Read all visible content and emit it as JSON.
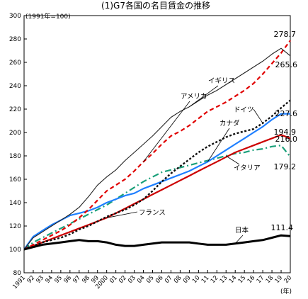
{
  "chart_data": {
    "type": "line",
    "title": "(1)G7各国の名目賃金の推移",
    "unit_label": "(1991年=100)",
    "x_unit": "(年)",
    "categories": [
      "1991",
      "92",
      "93",
      "94",
      "95",
      "96",
      "97",
      "98",
      "99",
      "2000",
      "01",
      "02",
      "03",
      "04",
      "05",
      "06",
      "07",
      "08",
      "09",
      "10",
      "11",
      "12",
      "13",
      "14",
      "15",
      "16",
      "17",
      "18",
      "19",
      "20"
    ],
    "ylim": [
      80,
      300
    ],
    "yticks": [
      80,
      100,
      120,
      140,
      160,
      180,
      200,
      220,
      240,
      260,
      280,
      300
    ],
    "grid": false,
    "series": [
      {
        "name": "イギリス",
        "color": "#222222",
        "style": "solid-thin",
        "values": [
          100,
          110,
          115,
          120,
          125,
          130,
          136,
          145,
          155,
          162,
          168,
          176,
          183,
          190,
          197,
          205,
          213,
          218,
          222,
          227,
          232,
          236,
          241,
          246,
          251,
          256,
          261,
          267,
          272,
          265.6
        ]
      },
      {
        "name": "アメリカ",
        "color": "#e00000",
        "style": "dash",
        "values": [
          100,
          104,
          108,
          112,
          116,
          121,
          127,
          134,
          142,
          150,
          155,
          160,
          167,
          175,
          182,
          190,
          197,
          201,
          206,
          212,
          218,
          222,
          226,
          231,
          236,
          242,
          250,
          259,
          268,
          278.7
        ]
      },
      {
        "name": "ドイツ",
        "color": "#111111",
        "style": "dot",
        "values": [
          100,
          103,
          106,
          108,
          110,
          113,
          117,
          120,
          124,
          128,
          131,
          134,
          138,
          143,
          150,
          158,
          165,
          171,
          177,
          183,
          188,
          192,
          196,
          199,
          201,
          203,
          208,
          214,
          221,
          227.6
        ]
      },
      {
        "name": "カナダ",
        "color": "#1e7fff",
        "style": "solid",
        "values": [
          100,
          111,
          116,
          121,
          125,
          129,
          131,
          133,
          136,
          140,
          143,
          146,
          148,
          152,
          155,
          158,
          161,
          164,
          167,
          171,
          175,
          180,
          185,
          190,
          195,
          200,
          205,
          211,
          216,
          216.0
        ]
      },
      {
        "name": "イタリア",
        "color": "#1aa07a",
        "style": "dashdot",
        "values": [
          100,
          106,
          110,
          114,
          118,
          122,
          126,
          130,
          134,
          138,
          143,
          148,
          153,
          158,
          162,
          166,
          168,
          170,
          172,
          174,
          176,
          178,
          180,
          182,
          183,
          185,
          186,
          188,
          189,
          179.2
        ]
      },
      {
        "name": "フランス",
        "color": "#cc0000",
        "style": "solid",
        "values": [
          100,
          103,
          106,
          109,
          112,
          115,
          118,
          121,
          124,
          127,
          131,
          135,
          139,
          143,
          147,
          151,
          155,
          159,
          163,
          167,
          171,
          175,
          179,
          183,
          186,
          189,
          192,
          195,
          198,
          194.9
        ]
      },
      {
        "name": "日本",
        "color": "#000000",
        "style": "solid-bold",
        "values": [
          100,
          102,
          104,
          105,
          106,
          107,
          108,
          107,
          107,
          106,
          104,
          103,
          103,
          104,
          105,
          106,
          106,
          106,
          106,
          105,
          104,
          104,
          104,
          105,
          106,
          107,
          108,
          110,
          112,
          111.4
        ]
      }
    ],
    "end_labels": [
      "278.7",
      "265.6",
      "227.6",
      "216.0",
      "194.9",
      "179.2",
      "111.4"
    ]
  }
}
